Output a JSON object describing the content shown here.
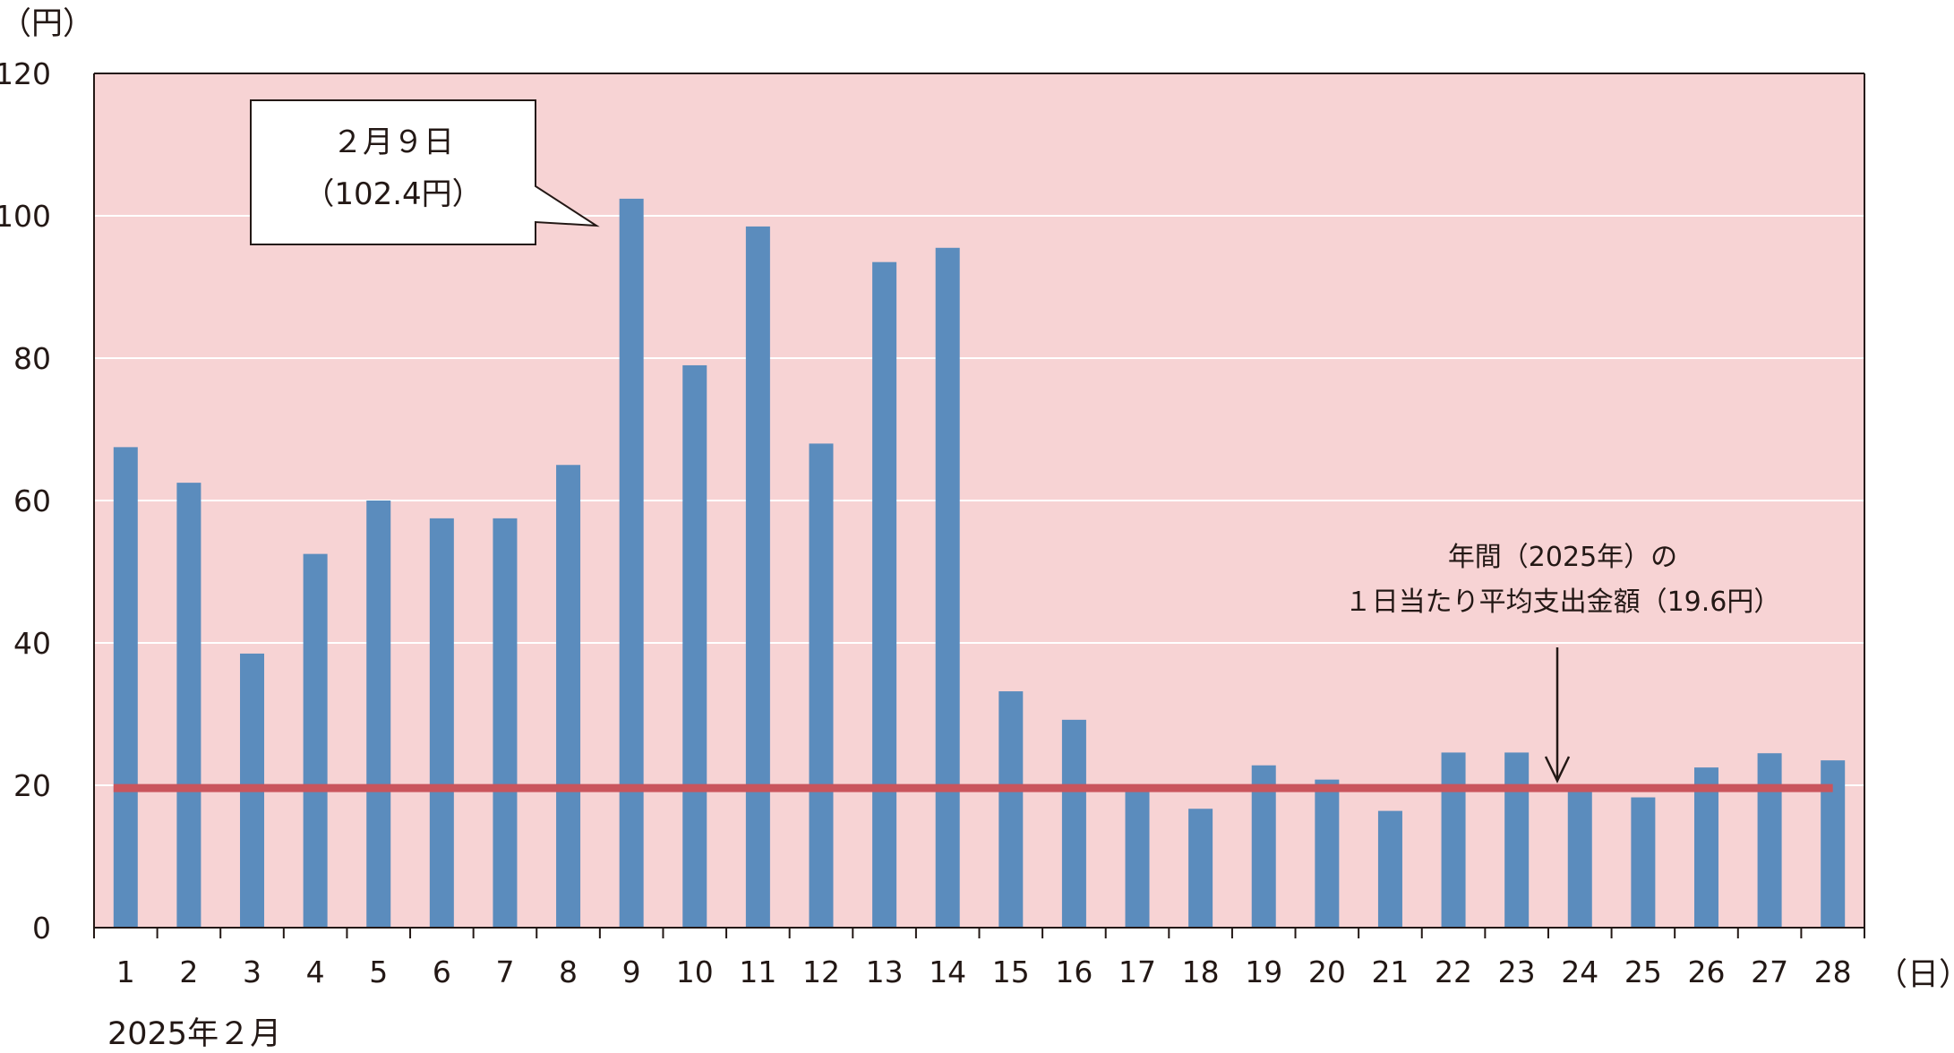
{
  "chart_data": {
    "type": "bar",
    "y_unit": "（円）",
    "x_unit": "（日）",
    "x_group_label": "2025年２月",
    "categories": [
      "1",
      "2",
      "3",
      "4",
      "5",
      "6",
      "7",
      "8",
      "9",
      "10",
      "11",
      "12",
      "13",
      "14",
      "15",
      "16",
      "17",
      "18",
      "19",
      "20",
      "21",
      "22",
      "23",
      "24",
      "25",
      "26",
      "27",
      "28"
    ],
    "values": [
      67.5,
      62.5,
      38.5,
      52.5,
      60.0,
      57.5,
      57.5,
      65.0,
      102.4,
      79.0,
      98.5,
      68.0,
      93.5,
      95.5,
      33.2,
      29.2,
      19.5,
      16.7,
      22.8,
      20.8,
      16.4,
      24.6,
      24.6,
      19.5,
      18.3,
      22.5,
      24.5,
      23.5
    ],
    "ylim": [
      0,
      120
    ],
    "yticks": [
      "0",
      "20",
      "40",
      "60",
      "80",
      "100",
      "120"
    ],
    "grid": true,
    "reference_line": {
      "value": 19.6,
      "label_line1": "年間（2025年）の",
      "label_line2": "１日当たり平均支出金額（19.6円）"
    },
    "callout": {
      "line1": "２月９日",
      "line2": "（102.4円）",
      "category": "9"
    },
    "colors": {
      "plot_background": "#f7d3d4",
      "bar": "#5b8cbd",
      "reference_line": "#c9555d",
      "grid": "#ffffff",
      "axis": "#231815"
    }
  }
}
